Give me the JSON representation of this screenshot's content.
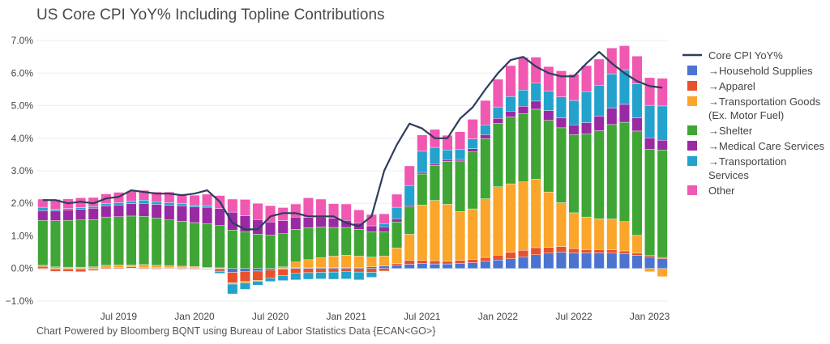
{
  "title": "US Core CPI YoY% Including Topline Contributions",
  "footer": "Chart Powered by Bloomberg BQNT using Bureau of Labor Statistics Data    {ECAN<GO>}",
  "chart_data": {
    "type": "bar",
    "stacked": true,
    "xlabel": "",
    "ylabel": "",
    "ylim": [
      -1.2,
      7.2
    ],
    "y_ticks": [
      -1.0,
      0.0,
      1.0,
      2.0,
      3.0,
      4.0,
      5.0,
      6.0,
      7.0
    ],
    "y_tick_labels": [
      "−1.0%",
      "0.0%",
      "1.0%",
      "2.0%",
      "3.0%",
      "4.0%",
      "5.0%",
      "6.0%",
      "7.0%"
    ],
    "x_tick_labels": [
      {
        "label": "Jul 2019",
        "index": 6
      },
      {
        "label": "Jan 2020",
        "index": 12
      },
      {
        "label": "Jul 2020",
        "index": 18
      },
      {
        "label": "Jan 2021",
        "index": 24
      },
      {
        "label": "Jul 2021",
        "index": 30
      },
      {
        "label": "Jan 2022",
        "index": 36
      },
      {
        "label": "Jul 2022",
        "index": 42
      },
      {
        "label": "Jan 2023",
        "index": 48
      }
    ],
    "categories": [
      "2019-01",
      "2019-02",
      "2019-03",
      "2019-04",
      "2019-05",
      "2019-06",
      "2019-07",
      "2019-08",
      "2019-09",
      "2019-10",
      "2019-11",
      "2019-12",
      "2020-01",
      "2020-02",
      "2020-03",
      "2020-04",
      "2020-05",
      "2020-06",
      "2020-07",
      "2020-08",
      "2020-09",
      "2020-10",
      "2020-11",
      "2020-12",
      "2021-01",
      "2021-02",
      "2021-03",
      "2021-04",
      "2021-05",
      "2021-06",
      "2021-07",
      "2021-08",
      "2021-09",
      "2021-10",
      "2021-11",
      "2021-12",
      "2022-01",
      "2022-02",
      "2022-03",
      "2022-04",
      "2022-05",
      "2022-06",
      "2022-07",
      "2022-08",
      "2022-09",
      "2022-10",
      "2022-11",
      "2022-12",
      "2023-01",
      "2023-02"
    ],
    "series": [
      {
        "name": "→Household Supplies",
        "color": "#4a74d0",
        "values": [
          -0.02,
          -0.03,
          -0.03,
          -0.03,
          -0.02,
          0.0,
          0.0,
          0.01,
          0.0,
          -0.02,
          -0.01,
          -0.02,
          -0.02,
          -0.02,
          -0.05,
          -0.12,
          -0.1,
          -0.08,
          -0.05,
          -0.02,
          0.02,
          0.02,
          0.03,
          0.03,
          0.03,
          0.03,
          0.05,
          0.08,
          0.1,
          0.13,
          0.15,
          0.14,
          0.14,
          0.15,
          0.18,
          0.22,
          0.26,
          0.3,
          0.36,
          0.42,
          0.47,
          0.5,
          0.48,
          0.48,
          0.48,
          0.47,
          0.45,
          0.4,
          0.36,
          0.3
        ]
      },
      {
        "name": "→Apparel",
        "color": "#e8512d",
        "values": [
          0.06,
          -0.06,
          -0.06,
          -0.07,
          -0.04,
          0.04,
          0.03,
          0.04,
          0.03,
          0.02,
          0.02,
          0.02,
          0.02,
          0.01,
          -0.05,
          -0.32,
          -0.3,
          -0.28,
          -0.25,
          -0.2,
          -0.15,
          -0.13,
          -0.12,
          -0.11,
          -0.1,
          -0.11,
          -0.12,
          -0.08,
          0.05,
          0.12,
          0.1,
          0.1,
          0.08,
          0.1,
          0.1,
          0.12,
          0.15,
          0.2,
          0.2,
          0.22,
          0.18,
          0.17,
          0.13,
          0.1,
          0.1,
          0.1,
          0.09,
          0.07,
          0.05,
          0.04
        ]
      },
      {
        "name": "→Transportation Goods (Ex. Motor Fuel)",
        "color": "#fba52a",
        "values": [
          0.04,
          0.05,
          0.04,
          0.04,
          0.05,
          0.06,
          0.08,
          0.06,
          0.09,
          0.08,
          0.07,
          0.05,
          0.04,
          0.02,
          0.02,
          -0.04,
          -0.04,
          -0.03,
          0.0,
          0.05,
          0.18,
          0.25,
          0.3,
          0.35,
          0.38,
          0.35,
          0.3,
          0.3,
          0.48,
          0.8,
          1.7,
          1.85,
          1.75,
          1.5,
          1.55,
          1.8,
          2.1,
          2.1,
          2.1,
          2.1,
          1.7,
          1.35,
          1.1,
          1.0,
          0.95,
          0.95,
          0.9,
          0.55,
          -0.1,
          -0.25
        ]
      },
      {
        "name": "→Shelter",
        "color": "#3fa535",
        "values": [
          1.38,
          1.42,
          1.44,
          1.45,
          1.45,
          1.48,
          1.48,
          1.5,
          1.48,
          1.45,
          1.4,
          1.38,
          1.35,
          1.35,
          1.3,
          1.18,
          1.12,
          1.05,
          1.03,
          1.02,
          1.0,
          0.98,
          0.95,
          0.88,
          0.85,
          0.82,
          0.78,
          0.75,
          0.8,
          0.85,
          0.95,
          1.08,
          1.32,
          1.55,
          1.75,
          1.85,
          1.95,
          2.05,
          2.1,
          2.15,
          2.2,
          2.3,
          2.4,
          2.55,
          2.7,
          2.9,
          3.05,
          3.2,
          3.25,
          3.3
        ]
      },
      {
        "name": "→Medical Care Services",
        "color": "#9a2aa3",
        "values": [
          0.3,
          0.3,
          0.32,
          0.33,
          0.35,
          0.35,
          0.36,
          0.38,
          0.4,
          0.42,
          0.45,
          0.48,
          0.48,
          0.5,
          0.52,
          0.55,
          0.5,
          0.45,
          0.4,
          0.4,
          0.38,
          0.32,
          0.3,
          0.28,
          0.22,
          0.2,
          0.18,
          0.15,
          0.1,
          0.05,
          0.05,
          0.05,
          0.05,
          0.05,
          0.1,
          0.12,
          0.15,
          0.18,
          0.22,
          0.25,
          0.3,
          0.3,
          0.3,
          0.35,
          0.45,
          0.5,
          0.55,
          0.4,
          0.35,
          0.3
        ]
      },
      {
        "name": "→Transportation Services",
        "color": "#22a2cc",
        "values": [
          0.1,
          0.05,
          0.04,
          0.05,
          0.05,
          0.06,
          0.07,
          0.08,
          0.1,
          0.08,
          0.08,
          0.06,
          0.06,
          0.05,
          -0.05,
          -0.3,
          -0.2,
          -0.12,
          -0.1,
          -0.15,
          -0.2,
          -0.2,
          -0.2,
          -0.22,
          -0.22,
          -0.24,
          -0.15,
          0.1,
          0.35,
          0.6,
          0.65,
          0.5,
          0.3,
          0.3,
          0.3,
          0.3,
          0.35,
          0.45,
          0.5,
          0.55,
          0.6,
          0.65,
          0.75,
          0.95,
          0.95,
          1.05,
          1.05,
          1.05,
          1.0,
          1.05
        ]
      },
      {
        "name": "Other",
        "color": "#f058b1",
        "values": [
          0.25,
          0.3,
          0.3,
          0.3,
          0.28,
          0.3,
          0.32,
          0.3,
          0.3,
          0.3,
          0.33,
          0.3,
          0.3,
          0.35,
          0.4,
          0.4,
          0.5,
          0.5,
          0.5,
          0.4,
          0.4,
          0.6,
          0.55,
          0.45,
          0.5,
          0.4,
          0.35,
          0.3,
          0.4,
          0.6,
          0.5,
          0.55,
          0.45,
          0.55,
          0.6,
          0.75,
          0.85,
          0.95,
          1.0,
          0.8,
          0.75,
          0.8,
          0.8,
          0.8,
          0.8,
          0.8,
          0.75,
          0.85,
          0.85,
          0.85
        ]
      }
    ],
    "line": {
      "name": "Core CPI YoY%",
      "color": "#2c3e5c",
      "values": [
        2.1,
        2.1,
        2.0,
        2.05,
        2.0,
        2.15,
        2.2,
        2.4,
        2.35,
        2.3,
        2.3,
        2.25,
        2.3,
        2.4,
        2.05,
        1.4,
        1.2,
        1.2,
        1.6,
        1.7,
        1.7,
        1.6,
        1.6,
        1.6,
        1.4,
        1.3,
        1.6,
        3.0,
        3.8,
        4.45,
        4.3,
        4.0,
        4.0,
        4.6,
        4.95,
        5.5,
        6.0,
        6.4,
        6.5,
        6.2,
        6.0,
        5.9,
        5.9,
        6.3,
        6.65,
        6.3,
        6.0,
        5.75,
        5.6,
        5.55
      ]
    },
    "legend_position": "right"
  }
}
